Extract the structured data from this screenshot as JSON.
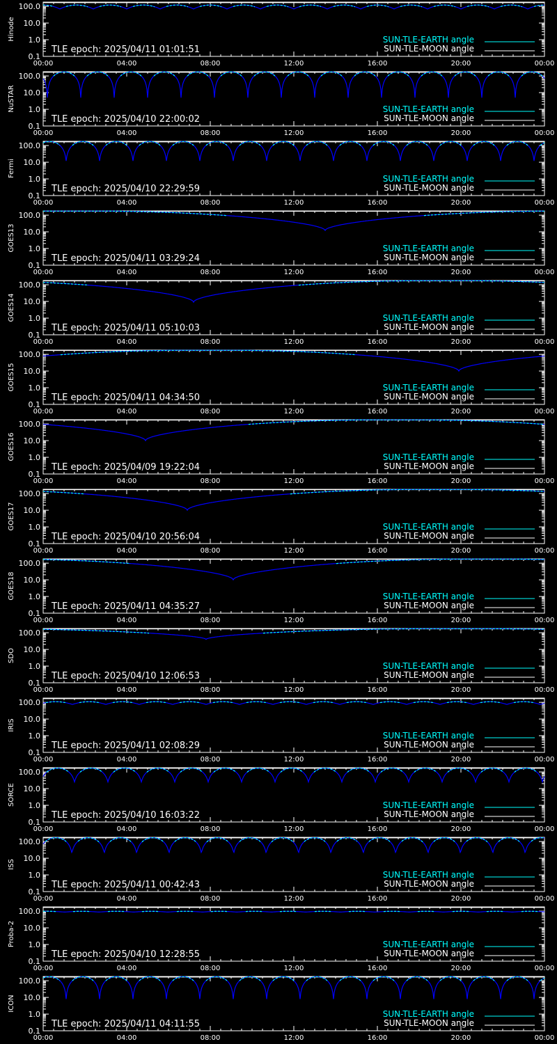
{
  "colors": {
    "background": "#000000",
    "frame": "#ffffff",
    "earth_curve": "#0000ff",
    "earth_curve_high": "#00ffff",
    "earth_legend": "#00ffff",
    "moon_curve": "#ffffff",
    "moon_legend": "#ffffff",
    "text": "#ffffff"
  },
  "chart_data": [
    {
      "type": "line",
      "ylabel": "Hinode",
      "epoch": "TLE epoch: 2025/04/11 01:01:51",
      "x_ticks": [
        "00:00",
        "04:00",
        "08:00",
        "12:00",
        "16:00",
        "20:00",
        "00:00"
      ],
      "y_ticks": [
        "100.0",
        "10.0",
        "1.0",
        "0.1"
      ],
      "ylim": [
        0.1,
        180
      ],
      "y_scale": "log",
      "legend": [
        {
          "label": "SUN-TLE-EARTH angle",
          "color": "#00ffff"
        },
        {
          "label": "SUN-TLE-MOON angle",
          "color": "#ffffff"
        }
      ],
      "earth_angle": {
        "pattern": "periodic",
        "period_hours": 1.6,
        "min": 70,
        "max": 120,
        "phase_hours": 0.0
      },
      "moon_angle": {
        "value": 165
      }
    },
    {
      "type": "line",
      "ylabel": "NuSTAR",
      "epoch": "TLE epoch: 2025/04/10 22:00:02",
      "x_ticks": [
        "00:00",
        "04:00",
        "08:00",
        "12:00",
        "16:00",
        "20:00",
        "00:00"
      ],
      "y_ticks": [
        "100.0",
        "10.0",
        "1.0",
        "0.1"
      ],
      "ylim": [
        0.1,
        180
      ],
      "y_scale": "log",
      "legend": [
        {
          "label": "SUN-TLE-EARTH angle",
          "color": "#00ffff"
        },
        {
          "label": "SUN-TLE-MOON angle",
          "color": "#ffffff"
        }
      ],
      "earth_angle": {
        "pattern": "periodic",
        "period_hours": 1.6,
        "min": 5,
        "max": 175,
        "phase_hours": 1.0
      },
      "moon_angle": {
        "value": 165
      }
    },
    {
      "type": "line",
      "ylabel": "Fermi",
      "epoch": "TLE epoch: 2025/04/10 22:29:59",
      "x_ticks": [
        "00:00",
        "04:00",
        "08:00",
        "12:00",
        "16:00",
        "20:00",
        "00:00"
      ],
      "y_ticks": [
        "100.0",
        "10.0",
        "1.0",
        "0.1"
      ],
      "ylim": [
        0.1,
        180
      ],
      "y_scale": "log",
      "legend": [
        {
          "label": "SUN-TLE-EARTH angle",
          "color": "#00ffff"
        },
        {
          "label": "SUN-TLE-MOON angle",
          "color": "#ffffff"
        }
      ],
      "earth_angle": {
        "pattern": "periodic",
        "period_hours": 1.6,
        "min": 12,
        "max": 175,
        "phase_hours": 0.3
      },
      "moon_angle": {
        "value": 165
      }
    },
    {
      "type": "line",
      "ylabel": "GOES13",
      "epoch": "TLE epoch: 2025/04/11 03:29:24",
      "x_ticks": [
        "00:00",
        "04:00",
        "08:00",
        "12:00",
        "16:00",
        "20:00",
        "00:00"
      ],
      "y_ticks": [
        "100.0",
        "10.0",
        "1.0",
        "0.1"
      ],
      "ylim": [
        0.1,
        180
      ],
      "y_scale": "log",
      "legend": [
        {
          "label": "SUN-TLE-EARTH angle",
          "color": "#00ffff"
        },
        {
          "label": "SUN-TLE-MOON angle",
          "color": "#ffffff"
        }
      ],
      "earth_angle": {
        "pattern": "single_dip",
        "min_hour": 13.5,
        "min": 12
      },
      "moon_angle": {
        "value": 170
      }
    },
    {
      "type": "line",
      "ylabel": "GOES14",
      "epoch": "TLE epoch: 2025/04/11 05:10:03",
      "x_ticks": [
        "00:00",
        "04:00",
        "08:00",
        "12:00",
        "16:00",
        "20:00",
        "00:00"
      ],
      "y_ticks": [
        "100.0",
        "10.0",
        "1.0",
        "0.1"
      ],
      "ylim": [
        0.1,
        180
      ],
      "y_scale": "log",
      "legend": [
        {
          "label": "SUN-TLE-EARTH angle",
          "color": "#00ffff"
        },
        {
          "label": "SUN-TLE-MOON angle",
          "color": "#ffffff"
        }
      ],
      "earth_angle": {
        "pattern": "single_dip",
        "min_hour": 7.2,
        "min": 9
      },
      "moon_angle": {
        "value": 170
      }
    },
    {
      "type": "line",
      "ylabel": "GOES15",
      "epoch": "TLE epoch: 2025/04/11 04:34:50",
      "x_ticks": [
        "00:00",
        "04:00",
        "08:00",
        "12:00",
        "16:00",
        "20:00",
        "00:00"
      ],
      "y_ticks": [
        "100.0",
        "10.0",
        "1.0",
        "0.1"
      ],
      "ylim": [
        0.1,
        180
      ],
      "y_scale": "log",
      "legend": [
        {
          "label": "SUN-TLE-EARTH angle",
          "color": "#00ffff"
        },
        {
          "label": "SUN-TLE-MOON angle",
          "color": "#ffffff"
        }
      ],
      "earth_angle": {
        "pattern": "single_dip",
        "min_hour": 19.9,
        "min": 10
      },
      "moon_angle": {
        "value": 170
      }
    },
    {
      "type": "line",
      "ylabel": "GOES16",
      "epoch": "TLE epoch: 2025/04/09 19:22:04",
      "x_ticks": [
        "00:00",
        "04:00",
        "08:00",
        "12:00",
        "16:00",
        "20:00",
        "00:00"
      ],
      "y_ticks": [
        "100.0",
        "10.0",
        "1.0",
        "0.1"
      ],
      "ylim": [
        0.1,
        180
      ],
      "y_scale": "log",
      "legend": [
        {
          "label": "SUN-TLE-EARTH angle",
          "color": "#00ffff"
        },
        {
          "label": "SUN-TLE-MOON angle",
          "color": "#ffffff"
        }
      ],
      "earth_angle": {
        "pattern": "single_dip",
        "min_hour": 4.9,
        "min": 10
      },
      "moon_angle": {
        "value": 170
      }
    },
    {
      "type": "line",
      "ylabel": "GOES17",
      "epoch": "TLE epoch: 2025/04/10 20:56:04",
      "x_ticks": [
        "00:00",
        "04:00",
        "08:00",
        "12:00",
        "16:00",
        "20:00",
        "00:00"
      ],
      "y_ticks": [
        "100.0",
        "10.0",
        "1.0",
        "0.1"
      ],
      "ylim": [
        0.1,
        180
      ],
      "y_scale": "log",
      "legend": [
        {
          "label": "SUN-TLE-EARTH angle",
          "color": "#00ffff"
        },
        {
          "label": "SUN-TLE-MOON angle",
          "color": "#ffffff"
        }
      ],
      "earth_angle": {
        "pattern": "single_dip",
        "min_hour": 6.9,
        "min": 10
      },
      "moon_angle": {
        "value": 170
      }
    },
    {
      "type": "line",
      "ylabel": "GOES18",
      "epoch": "TLE epoch: 2025/04/11 04:35:27",
      "x_ticks": [
        "00:00",
        "04:00",
        "08:00",
        "12:00",
        "16:00",
        "20:00",
        "00:00"
      ],
      "y_ticks": [
        "100.0",
        "10.0",
        "1.0",
        "0.1"
      ],
      "ylim": [
        0.1,
        180
      ],
      "y_scale": "log",
      "legend": [
        {
          "label": "SUN-TLE-EARTH angle",
          "color": "#00ffff"
        },
        {
          "label": "SUN-TLE-MOON angle",
          "color": "#ffffff"
        }
      ],
      "earth_angle": {
        "pattern": "single_dip",
        "min_hour": 9.1,
        "min": 10
      },
      "moon_angle": {
        "value": 170
      }
    },
    {
      "type": "line",
      "ylabel": "SDO",
      "epoch": "TLE epoch: 2025/04/10 12:06:53",
      "x_ticks": [
        "00:00",
        "04:00",
        "08:00",
        "12:00",
        "16:00",
        "20:00",
        "00:00"
      ],
      "y_ticks": [
        "100.0",
        "10.0",
        "1.0",
        "0.1"
      ],
      "ylim": [
        0.1,
        180
      ],
      "y_scale": "log",
      "legend": [
        {
          "label": "SUN-TLE-EARTH angle",
          "color": "#00ffff"
        },
        {
          "label": "SUN-TLE-MOON angle",
          "color": "#ffffff"
        }
      ],
      "earth_angle": {
        "pattern": "single_dip",
        "min_hour": 7.8,
        "min": 40
      },
      "moon_angle": {
        "value": 170
      }
    },
    {
      "type": "line",
      "ylabel": "IRIS",
      "epoch": "TLE epoch: 2025/04/11 02:08:29",
      "x_ticks": [
        "00:00",
        "04:00",
        "08:00",
        "12:00",
        "16:00",
        "20:00",
        "00:00"
      ],
      "y_ticks": [
        "100.0",
        "10.0",
        "1.0",
        "0.1"
      ],
      "ylim": [
        0.1,
        180
      ],
      "y_scale": "log",
      "legend": [
        {
          "label": "SUN-TLE-EARTH angle",
          "color": "#00ffff"
        },
        {
          "label": "SUN-TLE-MOON angle",
          "color": "#ffffff"
        }
      ],
      "earth_angle": {
        "pattern": "periodic",
        "period_hours": 1.6,
        "min": 75,
        "max": 110,
        "phase_hours": 0.6
      },
      "moon_angle": {
        "value": 165
      }
    },
    {
      "type": "line",
      "ylabel": "SORCE",
      "epoch": "TLE epoch: 2025/04/10 16:03:22",
      "x_ticks": [
        "00:00",
        "04:00",
        "08:00",
        "12:00",
        "16:00",
        "20:00",
        "00:00"
      ],
      "y_ticks": [
        "100.0",
        "10.0",
        "1.0",
        "0.1"
      ],
      "ylim": [
        0.1,
        180
      ],
      "y_scale": "log",
      "legend": [
        {
          "label": "SUN-TLE-EARTH angle",
          "color": "#00ffff"
        },
        {
          "label": "SUN-TLE-MOON angle",
          "color": "#ffffff"
        }
      ],
      "earth_angle": {
        "pattern": "periodic",
        "period_hours": 1.6,
        "min": 25,
        "max": 170,
        "phase_hours": 0.7
      },
      "moon_angle": {
        "value": 165
      }
    },
    {
      "type": "line",
      "ylabel": "ISS",
      "epoch": "TLE epoch: 2025/04/11 00:42:43",
      "x_ticks": [
        "00:00",
        "04:00",
        "08:00",
        "12:00",
        "16:00",
        "20:00",
        "00:00"
      ],
      "y_ticks": [
        "100.0",
        "10.0",
        "1.0",
        "0.1"
      ],
      "ylim": [
        0.1,
        180
      ],
      "y_scale": "log",
      "legend": [
        {
          "label": "SUN-TLE-EARTH angle",
          "color": "#00ffff"
        },
        {
          "label": "SUN-TLE-MOON angle",
          "color": "#ffffff"
        }
      ],
      "earth_angle": {
        "pattern": "periodic",
        "period_hours": 1.55,
        "min": 20,
        "max": 170,
        "phase_hours": 0.6
      },
      "moon_angle": {
        "value": 165
      }
    },
    {
      "type": "line",
      "ylabel": "Proba-2",
      "epoch": "TLE epoch: 2025/04/10 12:28:55",
      "x_ticks": [
        "00:00",
        "04:00",
        "08:00",
        "12:00",
        "16:00",
        "20:00",
        "00:00"
      ],
      "y_ticks": [
        "100.0",
        "10.0",
        "1.0",
        "0.1"
      ],
      "ylim": [
        0.1,
        180
      ],
      "y_scale": "log",
      "legend": [
        {
          "label": "SUN-TLE-EARTH angle",
          "color": "#00ffff"
        },
        {
          "label": "SUN-TLE-MOON angle",
          "color": "#ffffff"
        }
      ],
      "earth_angle": {
        "pattern": "periodic",
        "period_hours": 1.65,
        "min": 88,
        "max": 98,
        "phase_hours": 0.2
      },
      "moon_angle": {
        "value": 165
      }
    },
    {
      "type": "line",
      "ylabel": "ICON",
      "epoch": "TLE epoch: 2025/04/11 04:11:55",
      "x_ticks": [
        "00:00",
        "04:00",
        "08:00",
        "12:00",
        "16:00",
        "20:00",
        "00:00"
      ],
      "y_ticks": [
        "100.0",
        "10.0",
        "1.0",
        "0.1"
      ],
      "ylim": [
        0.1,
        180
      ],
      "y_scale": "log",
      "legend": [
        {
          "label": "SUN-TLE-EARTH angle",
          "color": "#00ffff"
        },
        {
          "label": "SUN-TLE-MOON angle",
          "color": "#ffffff"
        }
      ],
      "earth_angle": {
        "pattern": "periodic",
        "period_hours": 1.6,
        "min": 8,
        "max": 175,
        "phase_hours": 0.3
      },
      "moon_angle": {
        "value": 165
      }
    }
  ]
}
